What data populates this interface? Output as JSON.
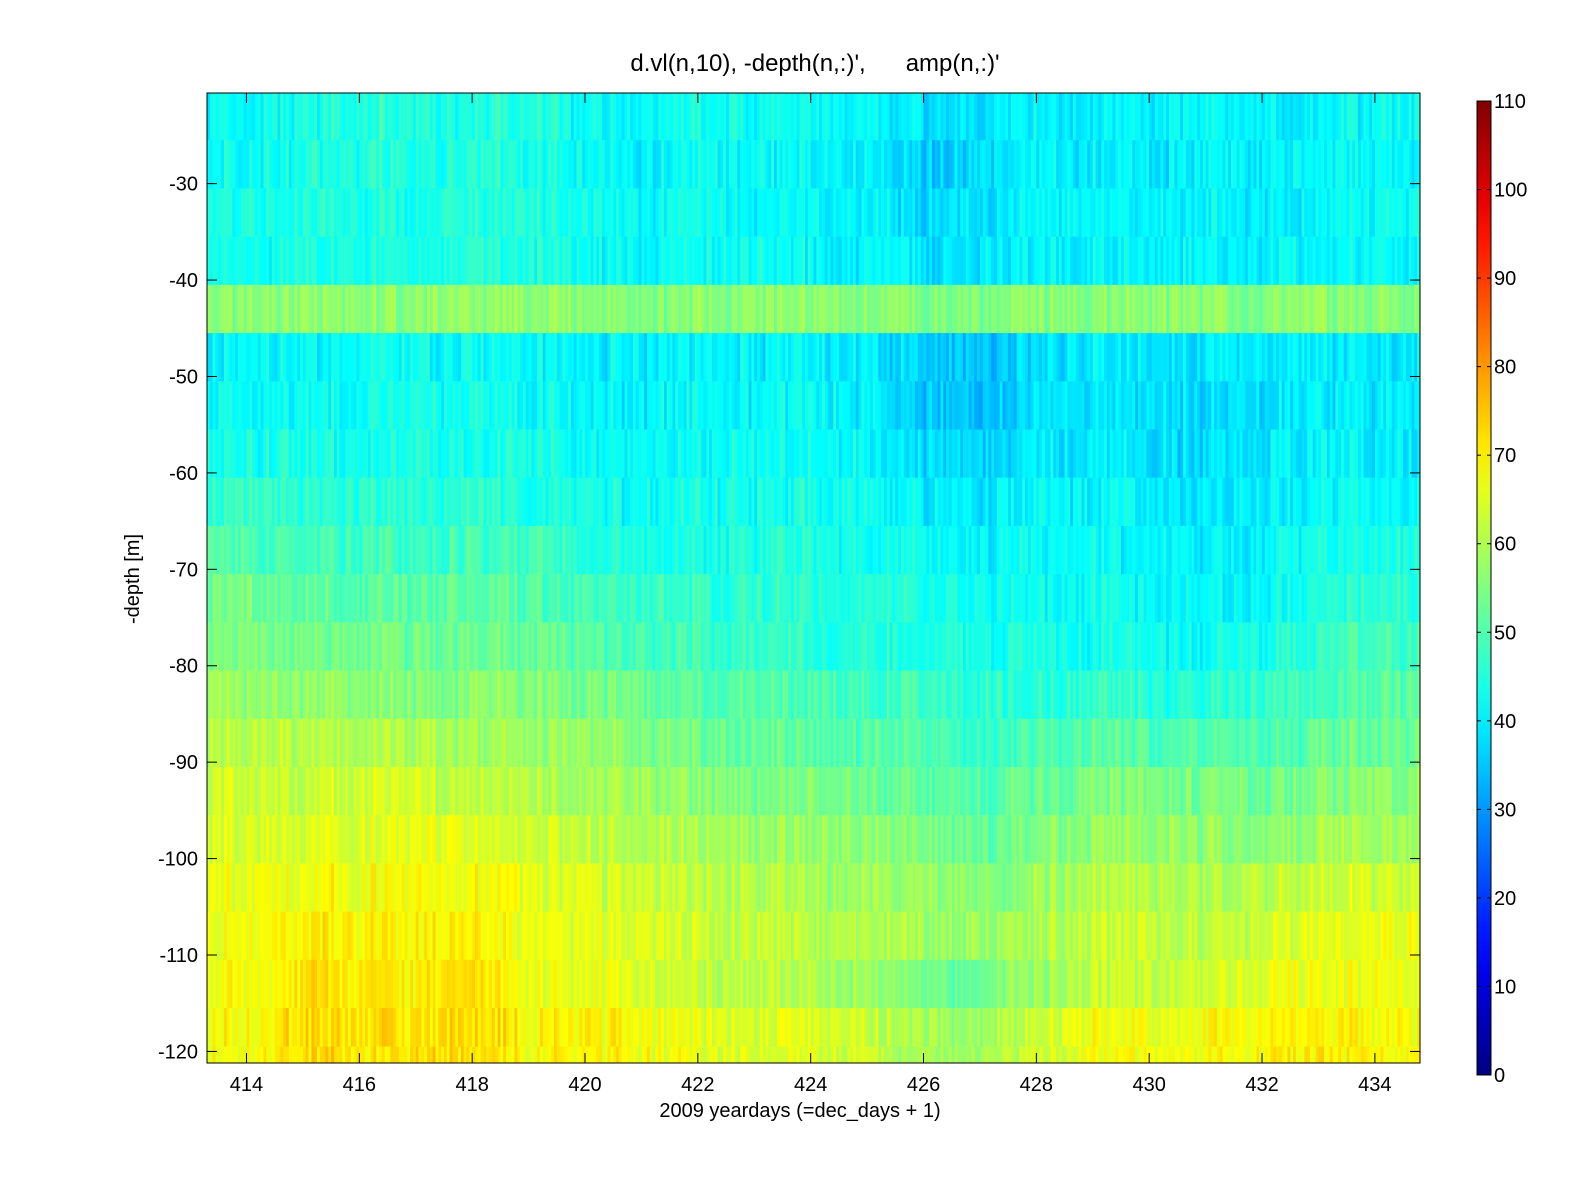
{
  "chart_data": {
    "type": "heatmap",
    "title": "d.vl(n,10), -depth(n,:)',      amp(n,:)'",
    "xlabel": "2009 yeardays (=dec_days + 1)",
    "ylabel": "-depth [m]",
    "xlim": [
      413.3,
      434.8
    ],
    "ylim": [
      -121.2,
      -20.6
    ],
    "x_ticks": [
      414,
      416,
      418,
      420,
      422,
      424,
      426,
      428,
      430,
      432,
      434
    ],
    "y_ticks": [
      -30,
      -40,
      -50,
      -60,
      -70,
      -80,
      -90,
      -100,
      -110,
      -120
    ],
    "x_tick_labels": [
      "414",
      "416",
      "418",
      "420",
      "422",
      "424",
      "426",
      "428",
      "430",
      "432",
      "434"
    ],
    "y_tick_labels": [
      "-30",
      "-40",
      "-50",
      "-60",
      "-70",
      "-80",
      "-90",
      "-100",
      "-110",
      "-120"
    ],
    "colorbar": {
      "colormap": "jet",
      "clim": [
        0,
        110
      ],
      "ticks": [
        0,
        10,
        20,
        30,
        40,
        50,
        60,
        70,
        80,
        90,
        100,
        110
      ],
      "tick_labels": [
        "0",
        "10",
        "20",
        "30",
        "40",
        "50",
        "60",
        "70",
        "80",
        "90",
        "100",
        "110"
      ]
    },
    "depth_bins": [
      -23,
      -28,
      -33,
      -38,
      -43,
      -48,
      -53,
      -58,
      -63,
      -68,
      -73,
      -78,
      -83,
      -88,
      -93,
      -98,
      -103,
      -108,
      -113,
      -118,
      -121
    ],
    "day_columns": [
      414,
      415,
      416,
      417,
      418,
      419,
      420,
      421,
      422,
      423,
      424,
      425,
      426,
      427,
      428,
      429,
      430,
      431,
      432,
      433,
      434
    ],
    "amp_values": [
      [
        41,
        44,
        46,
        45,
        44,
        46,
        42,
        41,
        43,
        42,
        41,
        42,
        38,
        39,
        41,
        40,
        40,
        41,
        40,
        41,
        42
      ],
      [
        42,
        44,
        45,
        44,
        45,
        45,
        42,
        40,
        42,
        41,
        41,
        40,
        35,
        38,
        41,
        40,
        39,
        40,
        40,
        41,
        42
      ],
      [
        43,
        45,
        45,
        44,
        45,
        45,
        43,
        41,
        43,
        42,
        41,
        40,
        37,
        39,
        41,
        41,
        40,
        40,
        40,
        41,
        42
      ],
      [
        43,
        44,
        44,
        44,
        45,
        45,
        43,
        41,
        43,
        42,
        41,
        41,
        38,
        39,
        41,
        41,
        40,
        40,
        41,
        41,
        42
      ],
      [
        56,
        57,
        57,
        56,
        57,
        57,
        56,
        55,
        56,
        56,
        56,
        56,
        55,
        55,
        56,
        56,
        56,
        56,
        55,
        56,
        56
      ],
      [
        41,
        41,
        42,
        42,
        42,
        42,
        40,
        40,
        41,
        40,
        40,
        40,
        36,
        35,
        38,
        39,
        38,
        38,
        39,
        40,
        40
      ],
      [
        42,
        42,
        43,
        43,
        43,
        43,
        41,
        40,
        41,
        41,
        41,
        40,
        35,
        35,
        38,
        39,
        38,
        37,
        39,
        40,
        40
      ],
      [
        44,
        44,
        44,
        44,
        44,
        44,
        42,
        41,
        42,
        42,
        42,
        41,
        37,
        37,
        39,
        40,
        38,
        37,
        40,
        40,
        40
      ],
      [
        47,
        46,
        46,
        46,
        46,
        45,
        44,
        42,
        43,
        43,
        43,
        42,
        40,
        39,
        41,
        41,
        39,
        38,
        40,
        41,
        42
      ],
      [
        50,
        49,
        49,
        48,
        48,
        48,
        46,
        44,
        44,
        44,
        44,
        43,
        42,
        41,
        42,
        42,
        40,
        39,
        41,
        43,
        45
      ],
      [
        53,
        52,
        52,
        51,
        51,
        50,
        49,
        47,
        46,
        46,
        45,
        44,
        44,
        43,
        43,
        43,
        41,
        40,
        42,
        45,
        47
      ],
      [
        55,
        54,
        54,
        53,
        53,
        53,
        51,
        49,
        48,
        47,
        46,
        45,
        45,
        44,
        44,
        44,
        43,
        42,
        44,
        47,
        49
      ],
      [
        57,
        57,
        57,
        56,
        56,
        56,
        54,
        53,
        51,
        50,
        49,
        48,
        47,
        46,
        46,
        47,
        46,
        45,
        47,
        49,
        51
      ],
      [
        61,
        61,
        61,
        60,
        59,
        58,
        57,
        56,
        54,
        52,
        51,
        50,
        49,
        48,
        49,
        51,
        50,
        49,
        50,
        51,
        53
      ],
      [
        63,
        63,
        64,
        63,
        62,
        61,
        59,
        58,
        56,
        55,
        54,
        53,
        51,
        51,
        52,
        55,
        54,
        53,
        54,
        55,
        57
      ],
      [
        64,
        65,
        66,
        66,
        66,
        64,
        62,
        61,
        59,
        58,
        57,
        56,
        54,
        53,
        55,
        58,
        57,
        56,
        57,
        58,
        60
      ],
      [
        66,
        68,
        68,
        68,
        68,
        66,
        64,
        63,
        61,
        60,
        59,
        58,
        57,
        56,
        58,
        61,
        60,
        59,
        61,
        63,
        64
      ],
      [
        67,
        71,
        70,
        69,
        70,
        67,
        66,
        65,
        63,
        62,
        61,
        60,
        59,
        58,
        60,
        63,
        62,
        62,
        64,
        66,
        67
      ],
      [
        67,
        72,
        71,
        70,
        72,
        67,
        66,
        65,
        62,
        61,
        60,
        58,
        53,
        54,
        58,
        63,
        62,
        63,
        66,
        67,
        67
      ],
      [
        68,
        73,
        72,
        71,
        73,
        69,
        69,
        68,
        66,
        65,
        65,
        63,
        59,
        59,
        63,
        68,
        67,
        67,
        70,
        70,
        69
      ],
      [
        68,
        73,
        72,
        71,
        73,
        69,
        69,
        68,
        66,
        65,
        65,
        63,
        59,
        59,
        63,
        68,
        67,
        67,
        70,
        70,
        69
      ]
    ]
  }
}
